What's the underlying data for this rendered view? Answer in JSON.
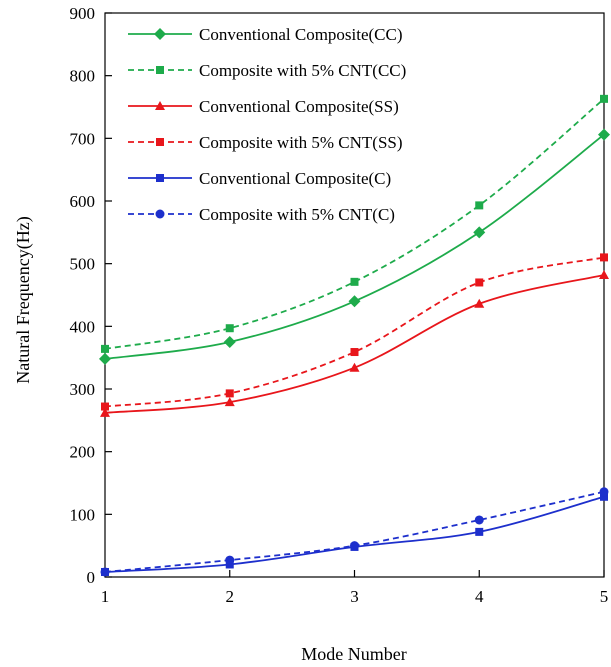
{
  "chart_data": {
    "type": "line",
    "xlabel": "Mode Number",
    "ylabel": "Natural Frequency(Hz)",
    "x": [
      1,
      2,
      3,
      4,
      5
    ],
    "xlim": [
      1,
      5
    ],
    "ylim": [
      0,
      900
    ],
    "xticks": [
      "1",
      "2",
      "3",
      "4",
      "5"
    ],
    "yticks": [
      "0",
      "100",
      "200",
      "300",
      "400",
      "500",
      "600",
      "700",
      "800",
      "900"
    ],
    "grid": false,
    "legend_position": "top-left",
    "series": [
      {
        "name": "Conventional Composite(CC)",
        "values": [
          348,
          375,
          440,
          550,
          706
        ],
        "color": "#1eab4b",
        "dash": "solid",
        "marker": "diamond"
      },
      {
        "name": "Composite with 5% CNT(CC)",
        "values": [
          364,
          397,
          471,
          593,
          763
        ],
        "color": "#1eab4b",
        "dash": "dashed",
        "marker": "square"
      },
      {
        "name": "Conventional Composite(SS)",
        "values": [
          262,
          279,
          334,
          436,
          482
        ],
        "color": "#e8161b",
        "dash": "solid",
        "marker": "triangle"
      },
      {
        "name": "Composite with 5% CNT(SS)",
        "values": [
          272,
          293,
          359,
          470,
          510
        ],
        "color": "#e8161b",
        "dash": "dashed",
        "marker": "square"
      },
      {
        "name": "Conventional Composite(C)",
        "values": [
          8,
          20,
          48,
          72,
          128
        ],
        "color": "#1d2fcc",
        "dash": "solid",
        "marker": "square"
      },
      {
        "name": "Composite with 5% CNT(C)",
        "values": [
          8,
          27,
          50,
          91,
          136
        ],
        "color": "#1d2fcc",
        "dash": "dashed",
        "marker": "circle"
      }
    ]
  }
}
